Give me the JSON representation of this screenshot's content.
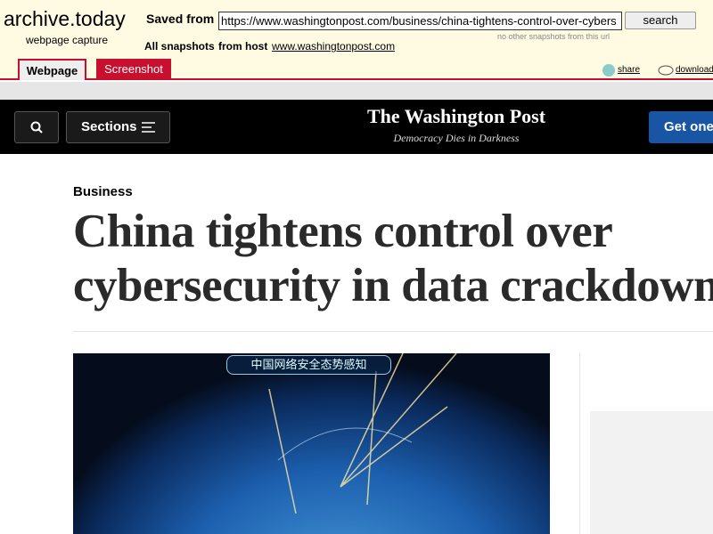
{
  "archive_bar": {
    "logo": "archive.today",
    "logo_sub": "webpage capture",
    "saved_from_label": "Saved from",
    "url": "https://www.washingtonpost.com/business/china-tightens-control-over-cybers",
    "search_button": "search",
    "no_snapshots_note": "no other snapshots from this url",
    "all_snapshots_label": "All snapshots",
    "from_host_label": "from host",
    "host_link": "www.washingtonpost.com",
    "tabs": [
      "Webpage",
      "Screenshot"
    ],
    "share": "share",
    "download": "download"
  },
  "site_header": {
    "sections_button": "Sections",
    "masthead": "The Washington Post",
    "tagline": "Democracy Dies in Darkness",
    "subscribe_button": "Get one"
  },
  "article": {
    "section": "Business",
    "headline_lines": [
      "China tightens control over",
      "cybersecurity in data crackdown"
    ],
    "image_caption_text": "中国网络安全态势感知"
  }
}
